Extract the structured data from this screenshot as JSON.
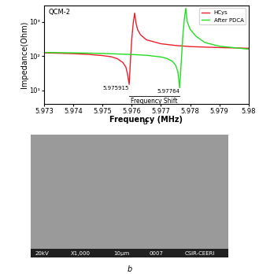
{
  "chart_data": {
    "type": "line",
    "title": "QCM-2",
    "x_label": "Frequency (MHz)",
    "y_label": "Impedance(Ohm)",
    "log": "y",
    "grid": false,
    "legend": "upper right",
    "xlim": [
      5.973,
      5.98
    ],
    "xticks": [
      5.973,
      5.974,
      5.975,
      5.976,
      5.977,
      5.978,
      5.979,
      5.98
    ],
    "ylim": [
      4,
      3000
    ],
    "yticks": [
      {
        "value": 10,
        "label": "10¹"
      },
      {
        "value": 100,
        "label": "10²"
      },
      {
        "value": 1000,
        "label": "10³"
      }
    ],
    "annotations": [
      "5.975915",
      "5.97764",
      "Frequency Shift"
    ],
    "series": [
      {
        "name": "HCys",
        "color": "#e8202a",
        "x": [
          5.973,
          5.9735,
          5.974,
          5.9745,
          5.975,
          5.9753,
          5.9755,
          5.9757,
          5.9758,
          5.97585,
          5.975915,
          5.97595,
          5.976,
          5.97605,
          5.9761,
          5.97615,
          5.9762,
          5.9763,
          5.9765,
          5.977,
          5.9775,
          5.978,
          5.979,
          5.98
        ],
        "values": [
          125,
          122,
          118,
          113,
          104,
          96,
          85,
          65,
          48,
          32,
          15,
          60,
          300,
          900,
          1800,
          900,
          600,
          420,
          300,
          230,
          205,
          190,
          178,
          170
        ]
      },
      {
        "name": "After PDCA",
        "color": "#22dd22",
        "x": [
          5.973,
          5.974,
          5.975,
          5.976,
          5.9765,
          5.977,
          5.9772,
          5.9774,
          5.9775,
          5.97758,
          5.97764,
          5.9777,
          5.97775,
          5.9778,
          5.97785,
          5.9779,
          5.978,
          5.9782,
          5.9785,
          5.979,
          5.98
        ],
        "values": [
          128,
          125,
          120,
          112,
          106,
          95,
          86,
          70,
          55,
          35,
          12,
          80,
          400,
          1200,
          2500,
          1000,
          600,
          380,
          250,
          195,
          160
        ]
      }
    ],
    "panel_label": "a"
  },
  "image": {
    "panel_label": "b",
    "footer": [
      "20kV",
      "X1,000",
      "10µm",
      "0007",
      "CSIR-CEERI"
    ]
  }
}
